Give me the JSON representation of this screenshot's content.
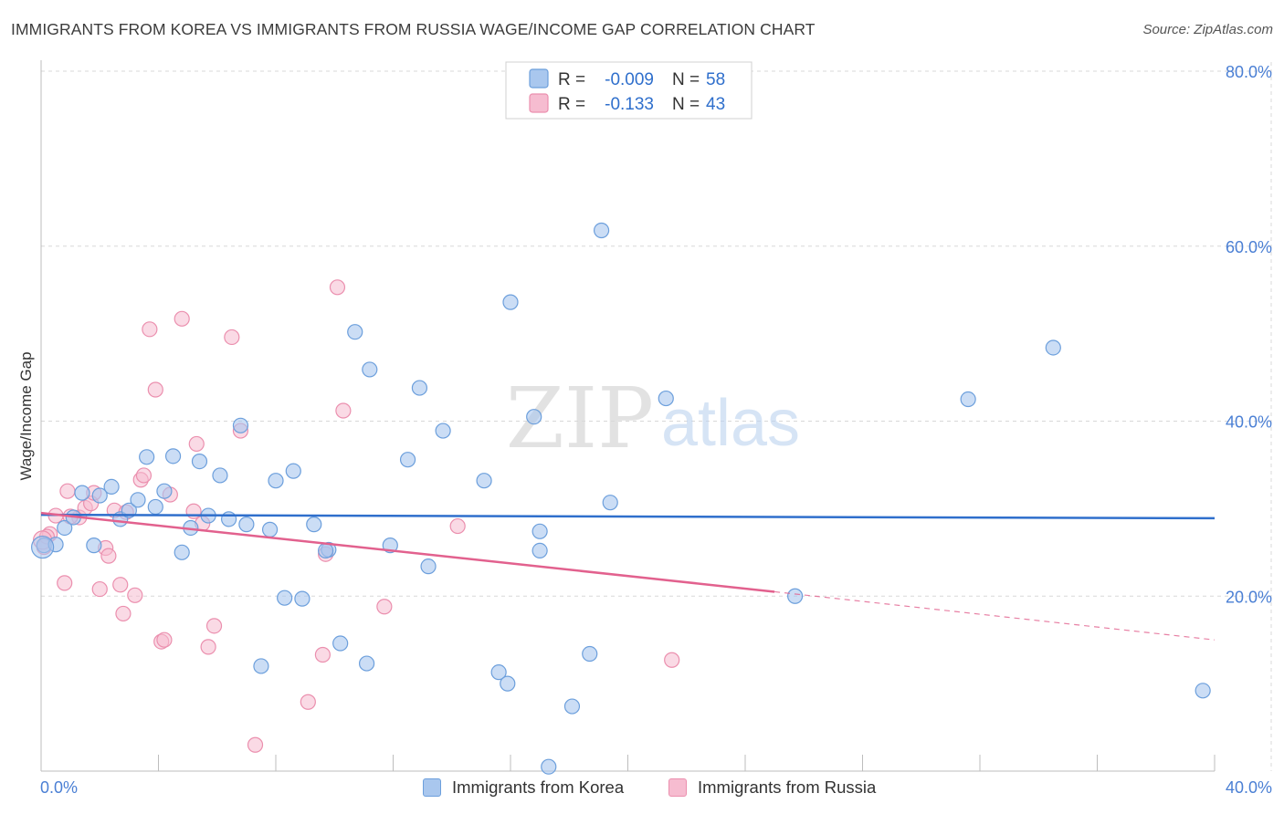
{
  "title": "IMMIGRANTS FROM KOREA VS IMMIGRANTS FROM RUSSIA WAGE/INCOME GAP CORRELATION CHART",
  "source": "Source: ZipAtlas.com",
  "watermark": {
    "zip": "ZIP",
    "atlas": "atlas"
  },
  "legend": {
    "korea": {
      "r_label": "R =",
      "r_value": "-0.009",
      "n_label": "N =",
      "n_value": "58"
    },
    "russia": {
      "r_label": "R =",
      "r_value": "-0.133",
      "n_label": "N =",
      "n_value": "43"
    }
  },
  "bottom_legend": {
    "korea": "Immigrants from Korea",
    "russia": "Immigrants from Russia"
  },
  "colors": {
    "korea_fill": "#a9c7ee",
    "korea_stroke": "#6c9fdc",
    "korea_line": "#2f6fcc",
    "russia_fill": "#f6bcd0",
    "russia_stroke": "#eb8fae",
    "russia_line": "#e2618e",
    "tick_text": "#4a7fd4",
    "grid": "#d8d8d8"
  },
  "chart_data": {
    "type": "scatter",
    "title": "IMMIGRANTS FROM KOREA VS IMMIGRANTS FROM RUSSIA WAGE/INCOME GAP CORRELATION CHART",
    "xlabel": "",
    "ylabel": "Wage/Income Gap",
    "xlim": [
      0,
      40
    ],
    "ylim": [
      0,
      80
    ],
    "x_tick_labels": [
      "0.0%",
      "40.0%"
    ],
    "y_ticks": [
      20,
      40,
      60,
      80
    ],
    "y_tick_labels": [
      "20.0%",
      "40.0%",
      "60.0%",
      "80.0%"
    ],
    "grid": true,
    "series": [
      {
        "name": "Immigrants from Korea",
        "points": [
          [
            0.1,
            25.8
          ],
          [
            0.5,
            25.9
          ],
          [
            0.8,
            27.8
          ],
          [
            1.1,
            29.0
          ],
          [
            1.4,
            31.8
          ],
          [
            1.8,
            25.8
          ],
          [
            2.0,
            31.5
          ],
          [
            2.4,
            32.5
          ],
          [
            2.7,
            28.8
          ],
          [
            3.0,
            29.8
          ],
          [
            3.3,
            31.0
          ],
          [
            3.6,
            35.9
          ],
          [
            3.9,
            30.2
          ],
          [
            4.2,
            32.0
          ],
          [
            4.5,
            36.0
          ],
          [
            4.8,
            25.0
          ],
          [
            5.1,
            27.8
          ],
          [
            5.4,
            35.4
          ],
          [
            5.7,
            29.2
          ],
          [
            6.1,
            33.8
          ],
          [
            6.4,
            28.8
          ],
          [
            6.8,
            39.5
          ],
          [
            7.0,
            28.2
          ],
          [
            7.5,
            12.0
          ],
          [
            7.8,
            27.6
          ],
          [
            8.0,
            33.2
          ],
          [
            8.3,
            19.8
          ],
          [
            8.6,
            34.3
          ],
          [
            8.9,
            19.7
          ],
          [
            9.3,
            28.2
          ],
          [
            9.8,
            25.3
          ],
          [
            10.2,
            14.6
          ],
          [
            10.7,
            50.2
          ],
          [
            11.1,
            12.3
          ],
          [
            11.2,
            45.9
          ],
          [
            11.9,
            25.8
          ],
          [
            12.9,
            43.8
          ],
          [
            13.2,
            23.4
          ],
          [
            13.7,
            38.9
          ],
          [
            12.5,
            35.6
          ],
          [
            15.1,
            33.2
          ],
          [
            15.6,
            11.3
          ],
          [
            15.9,
            10.0
          ],
          [
            16.0,
            53.6
          ],
          [
            16.8,
            40.5
          ],
          [
            17.0,
            27.4
          ],
          [
            17.0,
            25.2
          ],
          [
            17.3,
            0.5
          ],
          [
            18.1,
            7.4
          ],
          [
            18.7,
            13.4
          ],
          [
            19.1,
            61.8
          ],
          [
            19.4,
            30.7
          ],
          [
            21.3,
            42.6
          ],
          [
            25.7,
            20.0
          ],
          [
            31.6,
            42.5
          ],
          [
            34.5,
            48.4
          ],
          [
            39.6,
            9.2
          ],
          [
            9.7,
            25.2
          ]
        ],
        "trend": {
          "x": [
            0,
            40
          ],
          "y": [
            29.3,
            28.9
          ]
        }
      },
      {
        "name": "Immigrants from Russia",
        "points": [
          [
            0.1,
            25.6
          ],
          [
            0.3,
            27.1
          ],
          [
            0.5,
            29.2
          ],
          [
            0.8,
            21.5
          ],
          [
            0.9,
            32.0
          ],
          [
            1.3,
            29.0
          ],
          [
            1.5,
            30.1
          ],
          [
            1.7,
            30.6
          ],
          [
            1.8,
            31.8
          ],
          [
            2.0,
            20.8
          ],
          [
            2.2,
            25.5
          ],
          [
            2.3,
            24.6
          ],
          [
            2.5,
            29.8
          ],
          [
            2.7,
            21.3
          ],
          [
            2.8,
            18.0
          ],
          [
            2.9,
            29.6
          ],
          [
            3.2,
            20.1
          ],
          [
            3.4,
            33.3
          ],
          [
            3.5,
            33.8
          ],
          [
            3.7,
            50.5
          ],
          [
            3.9,
            43.6
          ],
          [
            4.1,
            14.8
          ],
          [
            4.2,
            15.0
          ],
          [
            4.4,
            31.6
          ],
          [
            4.8,
            51.7
          ],
          [
            5.2,
            29.7
          ],
          [
            5.3,
            37.4
          ],
          [
            5.5,
            28.3
          ],
          [
            5.7,
            14.2
          ],
          [
            5.9,
            16.6
          ],
          [
            6.5,
            49.6
          ],
          [
            6.8,
            38.9
          ],
          [
            7.3,
            3.0
          ],
          [
            9.1,
            7.9
          ],
          [
            9.6,
            13.3
          ],
          [
            9.7,
            24.8
          ],
          [
            10.1,
            55.3
          ],
          [
            10.3,
            41.2
          ],
          [
            11.7,
            18.8
          ],
          [
            14.2,
            28.0
          ],
          [
            21.5,
            12.7
          ],
          [
            0.2,
            26.8
          ],
          [
            1.0,
            29.1
          ]
        ],
        "trend": {
          "x": [
            0,
            25
          ],
          "y": [
            29.5,
            20.5
          ]
        },
        "trend_extension": {
          "x": [
            25,
            40
          ],
          "y": [
            20.5,
            15.0
          ]
        }
      }
    ]
  }
}
